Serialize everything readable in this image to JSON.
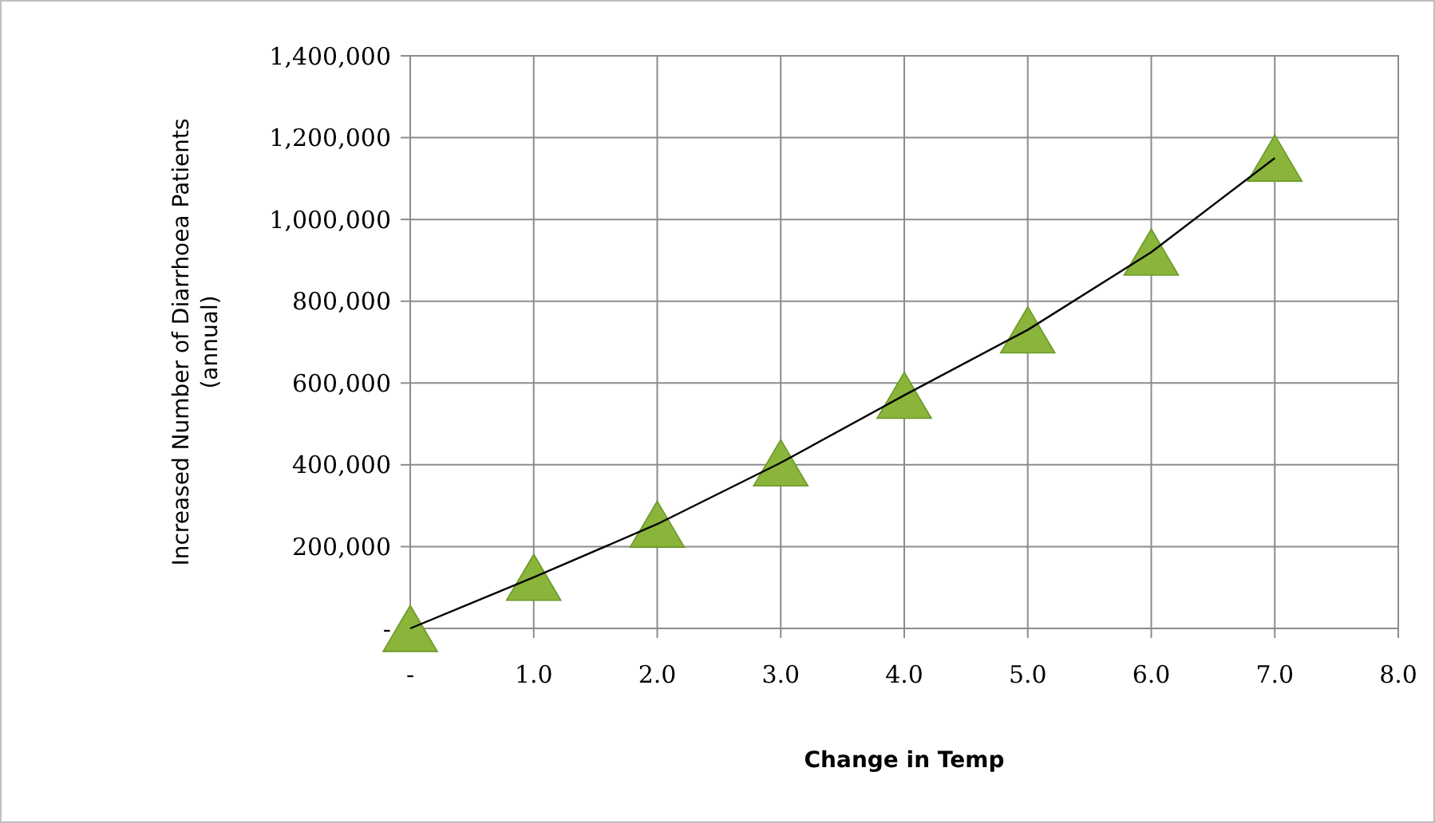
{
  "chart_data": {
    "type": "scatter",
    "xlabel": "Change in Temp",
    "ylabel": "Increased Number of Diarrhoea Patients\n(annual)",
    "x": [
      0,
      1,
      2,
      3,
      4,
      5,
      6,
      7
    ],
    "series": [
      {
        "type": "line",
        "color": "#000000",
        "marker": "none",
        "line_style": "solid",
        "values": [
          0,
          125000,
          255000,
          405000,
          570000,
          730000,
          920000,
          1150000
        ]
      },
      {
        "color": "#8ab43a",
        "marker": "triangle",
        "values": [
          0,
          125000,
          255000,
          405000,
          570000,
          730000,
          920000,
          1150000
        ]
      }
    ],
    "xlim": [
      0,
      8
    ],
    "xticks": [
      {
        "value": 0,
        "label": "-"
      },
      {
        "value": 1,
        "label": "1.0"
      },
      {
        "value": 2,
        "label": "2.0"
      },
      {
        "value": 3,
        "label": "3.0"
      },
      {
        "value": 4,
        "label": "4.0"
      },
      {
        "value": 5,
        "label": "5.0"
      },
      {
        "value": 6,
        "label": "6.0"
      },
      {
        "value": 7,
        "label": "7.0"
      },
      {
        "value": 8,
        "label": "8.0"
      }
    ],
    "ylim": [
      0,
      1400000
    ],
    "yticks": [
      {
        "value": 0,
        "label": "-"
      },
      {
        "value": 200000,
        "label": "200,000"
      },
      {
        "value": 400000,
        "label": "400,000"
      },
      {
        "value": 600000,
        "label": "600,000"
      },
      {
        "value": 800000,
        "label": "800,000"
      },
      {
        "value": 1000000,
        "label": "1,000,000"
      },
      {
        "value": 1200000,
        "label": "1,200,000"
      },
      {
        "value": 1400000,
        "label": "1,400,000"
      }
    ],
    "grid": true
  }
}
